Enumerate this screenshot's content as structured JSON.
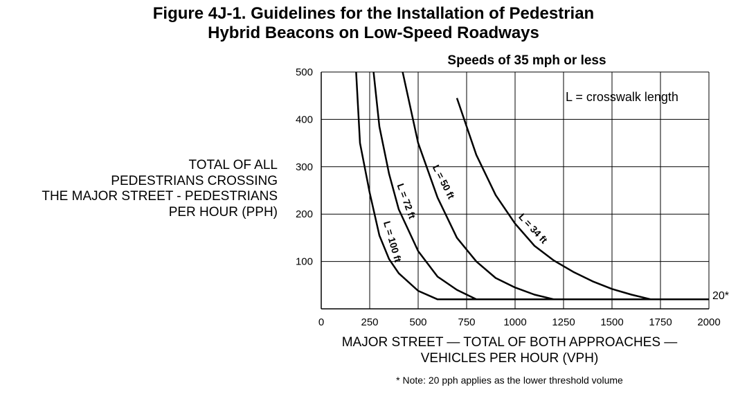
{
  "chart_data": {
    "type": "line",
    "title_line1": "Figure 4J-1.  Guidelines for the Installation of Pedestrian",
    "title_line2": "Hybrid Beacons on Low-Speed Roadways",
    "subtitle": "Speeds of 35 mph or less",
    "ylabel_lines": [
      "TOTAL OF ALL",
      "PEDESTRIANS CROSSING",
      "THE MAJOR STREET - PEDESTRIANS",
      "PER HOUR (PPH)"
    ],
    "xlabel_lines": [
      "MAJOR STREET — TOTAL OF BOTH APPROACHES —",
      "VEHICLES PER HOUR (VPH)"
    ],
    "legend_note": "L = crosswalk length",
    "threshold_label": "20*",
    "footnote": "* Note: 20 pph applies as the lower threshold volume",
    "xlim": [
      0,
      2000
    ],
    "ylim": [
      0,
      500
    ],
    "x_ticks": [
      "0",
      "250",
      "500",
      "750",
      "1000",
      "1250",
      "1500",
      "1750",
      "2000"
    ],
    "y_ticks": [
      "100",
      "200",
      "300",
      "400",
      "500"
    ],
    "grid": true,
    "series": [
      {
        "name": "L = 100 ft",
        "points": [
          [
            180,
            500
          ],
          [
            200,
            350
          ],
          [
            250,
            245
          ],
          [
            300,
            155
          ],
          [
            350,
            105
          ],
          [
            400,
            75
          ],
          [
            500,
            38
          ],
          [
            600,
            20
          ],
          [
            2000,
            20
          ]
        ]
      },
      {
        "name": "L = 72 ft",
        "points": [
          [
            270,
            500
          ],
          [
            300,
            385
          ],
          [
            350,
            285
          ],
          [
            400,
            210
          ],
          [
            500,
            122
          ],
          [
            600,
            68
          ],
          [
            700,
            40
          ],
          [
            800,
            20
          ],
          [
            2000,
            20
          ]
        ]
      },
      {
        "name": "L = 50 ft",
        "points": [
          [
            420,
            500
          ],
          [
            500,
            350
          ],
          [
            600,
            235
          ],
          [
            700,
            150
          ],
          [
            800,
            100
          ],
          [
            900,
            65
          ],
          [
            1000,
            45
          ],
          [
            1100,
            30
          ],
          [
            1200,
            20
          ],
          [
            2000,
            20
          ]
        ]
      },
      {
        "name": "L = 34 ft",
        "points": [
          [
            700,
            445
          ],
          [
            800,
            325
          ],
          [
            900,
            240
          ],
          [
            1000,
            180
          ],
          [
            1100,
            133
          ],
          [
            1200,
            102
          ],
          [
            1300,
            78
          ],
          [
            1400,
            58
          ],
          [
            1500,
            42
          ],
          [
            1600,
            30
          ],
          [
            1700,
            20
          ],
          [
            2000,
            20
          ]
        ]
      }
    ]
  }
}
